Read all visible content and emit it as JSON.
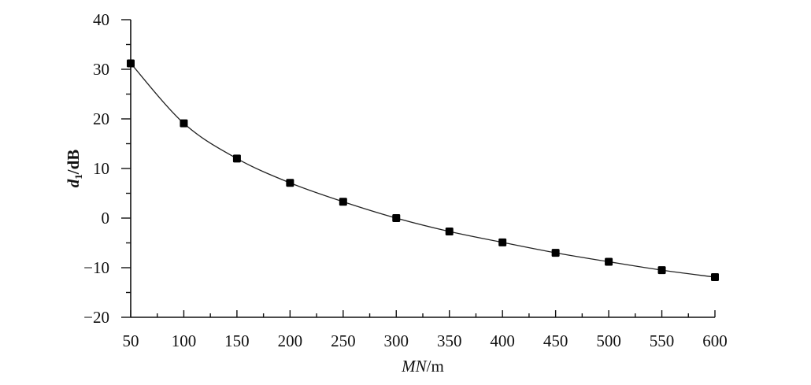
{
  "chart_data": {
    "type": "line",
    "xlabel_parts": {
      "main": "MN",
      "unit": "/m"
    },
    "ylabel_parts": {
      "main": "d",
      "sub": "1",
      "unit": "/dB"
    },
    "xlim": [
      50,
      600
    ],
    "ylim": [
      -20,
      40
    ],
    "xticks": [
      50,
      100,
      150,
      200,
      250,
      300,
      350,
      400,
      450,
      500,
      550,
      600
    ],
    "yticks": [
      -20,
      -10,
      0,
      10,
      20,
      30,
      40
    ],
    "ytick_labels": [
      "−20",
      "−10",
      "0",
      "10",
      "20",
      "30",
      "40"
    ],
    "xticks_minor_step": 25,
    "yticks_minor_step": 5,
    "grid": false,
    "series": [
      {
        "x": [
          50,
          100,
          150,
          200,
          250,
          300,
          350,
          400,
          450,
          500,
          550,
          600
        ],
        "values": [
          31.2,
          19.1,
          12.0,
          7.1,
          3.3,
          0.0,
          -2.7,
          -4.9,
          -7.0,
          -8.8,
          -10.5,
          -11.9
        ]
      }
    ],
    "marker": "square",
    "colors": {
      "line": "#222222",
      "marker": "#000000",
      "axis": "#111111"
    }
  }
}
